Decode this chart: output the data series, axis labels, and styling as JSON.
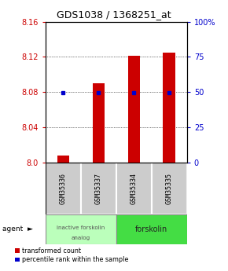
{
  "title": "GDS1038 / 1368251_at",
  "samples": [
    "GSM35336",
    "GSM35337",
    "GSM35334",
    "GSM35335"
  ],
  "red_values": [
    8.008,
    8.09,
    8.121,
    8.125
  ],
  "blue_values": [
    8.079,
    8.079,
    8.079,
    8.079
  ],
  "ymin": 8.0,
  "ymax": 8.16,
  "y_ticks_left": [
    8.0,
    8.04,
    8.08,
    8.12,
    8.16
  ],
  "y_ticks_right_vals": [
    0,
    25,
    50,
    75,
    100
  ],
  "bar_color": "#cc0000",
  "dot_color": "#0000cc",
  "bar_width": 0.35,
  "title_fontsize": 9,
  "tick_fontsize": 7,
  "label_fontsize": 6,
  "legend_red": "transformed count",
  "legend_blue": "percentile rank within the sample",
  "group1_color": "#bbffbb",
  "group2_color": "#44dd44",
  "sample_box_color": "#cccccc",
  "agent_arrow": "►"
}
